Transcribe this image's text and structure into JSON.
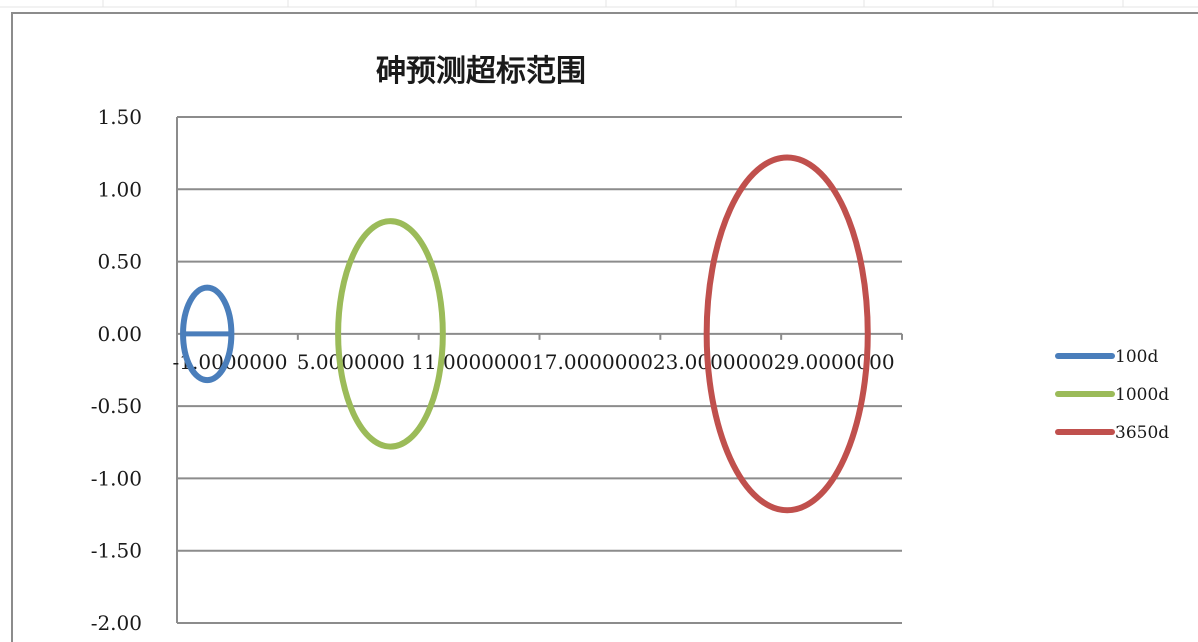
{
  "chart_data": {
    "type": "scatter",
    "title": "砷预测超标范围",
    "xlabel": "",
    "ylabel": "",
    "ylim": [
      -2.0,
      1.5
    ],
    "xlim": [
      -1.0,
      35.0
    ],
    "y_ticks": [
      "1.50",
      "1.00",
      "0.50",
      "0.00",
      "-0.50",
      "-1.00",
      "-1.50",
      "-2.00"
    ],
    "y_tick_values": [
      1.5,
      1.0,
      0.5,
      0.0,
      -0.5,
      -1.0,
      -1.5,
      -2.0
    ],
    "x_ticks": [
      "-1.0000000",
      "5.0000000",
      "11.0000000",
      "17.0000000",
      "23.0000000",
      "29.0000000"
    ],
    "x_tick_values": [
      -1,
      5,
      11,
      17,
      23,
      29
    ],
    "grid": "horizontal",
    "legend_position": "right",
    "series": [
      {
        "name": "100d",
        "color": "#4a7ebb",
        "shape": "ellipse",
        "center": [
          0.5,
          0.0
        ],
        "rx": 1.2,
        "ry": 0.32,
        "has_horizontal_line": true
      },
      {
        "name": "1000d",
        "color": "#9bbb59",
        "shape": "ellipse",
        "center": [
          9.6,
          0.0
        ],
        "rx": 2.6,
        "ry": 0.78,
        "has_horizontal_line": false
      },
      {
        "name": "3650d",
        "color": "#c0504d",
        "shape": "ellipse",
        "center": [
          29.3,
          0.0
        ],
        "rx": 4.0,
        "ry": 1.22,
        "has_horizontal_line": false
      }
    ]
  }
}
